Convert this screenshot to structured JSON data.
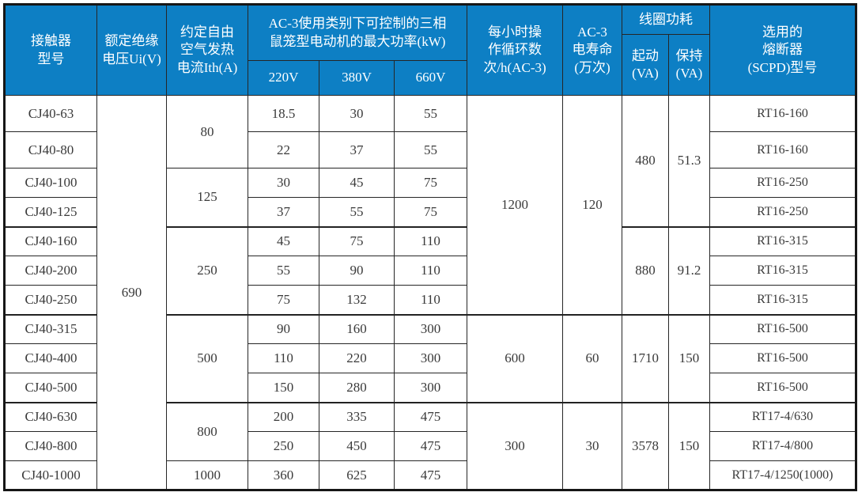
{
  "colors": {
    "header_bg": "#0d7fc4",
    "header_text": "#ffffff",
    "border": "#262626",
    "body_text": "#3a3a3a"
  },
  "header": {
    "model": "接触器\n型号",
    "ui": "额定绝缘\n电压Ui(V)",
    "ith": "约定自由\n空气发热\n电流Ith(A)",
    "power_group": "AC-3使用类别下可控制的三相\n鼠笼型电动机的最大功率(kW)",
    "v220": "220V",
    "v380": "380V",
    "v660": "660V",
    "ops": "每小时操\n作循环数\n次/h(AC-3)",
    "life": "AC-3\n电寿命\n(万次)",
    "coil_group": "线圈功耗",
    "start": "起动\n(VA)",
    "hold": "保持\n(VA)",
    "fuse": "选用的\n熔断器\n(SCPD)型号"
  },
  "merged": {
    "ui": "690",
    "ith": [
      "80",
      "125",
      "250",
      "500",
      "800",
      "1000"
    ],
    "ops": [
      "1200",
      "600",
      "300"
    ],
    "life": [
      "120",
      "60",
      "30"
    ],
    "start": [
      "480",
      "880",
      "1710",
      "3578"
    ],
    "hold": [
      "51.3",
      "91.2",
      "150",
      "150"
    ]
  },
  "rows": [
    {
      "model": "CJ40-63",
      "p220": "18.5",
      "p380": "30",
      "p660": "55",
      "fuse": "RT16-160"
    },
    {
      "model": "CJ40-80",
      "p220": "22",
      "p380": "37",
      "p660": "55",
      "fuse": "RT16-160"
    },
    {
      "model": "CJ40-100",
      "p220": "30",
      "p380": "45",
      "p660": "75",
      "fuse": "RT16-250"
    },
    {
      "model": "CJ40-125",
      "p220": "37",
      "p380": "55",
      "p660": "75",
      "fuse": "RT16-250"
    },
    {
      "model": "CJ40-160",
      "p220": "45",
      "p380": "75",
      "p660": "110",
      "fuse": "RT16-315"
    },
    {
      "model": "CJ40-200",
      "p220": "55",
      "p380": "90",
      "p660": "110",
      "fuse": "RT16-315"
    },
    {
      "model": "CJ40-250",
      "p220": "75",
      "p380": "132",
      "p660": "110",
      "fuse": "RT16-315"
    },
    {
      "model": "CJ40-315",
      "p220": "90",
      "p380": "160",
      "p660": "300",
      "fuse": "RT16-500"
    },
    {
      "model": "CJ40-400",
      "p220": "110",
      "p380": "220",
      "p660": "300",
      "fuse": "RT16-500"
    },
    {
      "model": "CJ40-500",
      "p220": "150",
      "p380": "280",
      "p660": "300",
      "fuse": "RT16-500"
    },
    {
      "model": "CJ40-630",
      "p220": "200",
      "p380": "335",
      "p660": "475",
      "fuse": "RT17-4/630"
    },
    {
      "model": "CJ40-800",
      "p220": "250",
      "p380": "450",
      "p660": "475",
      "fuse": "RT17-4/800"
    },
    {
      "model": "CJ40-1000",
      "p220": "360",
      "p380": "625",
      "p660": "475",
      "fuse": "RT17-4/1250(1000)"
    }
  ]
}
